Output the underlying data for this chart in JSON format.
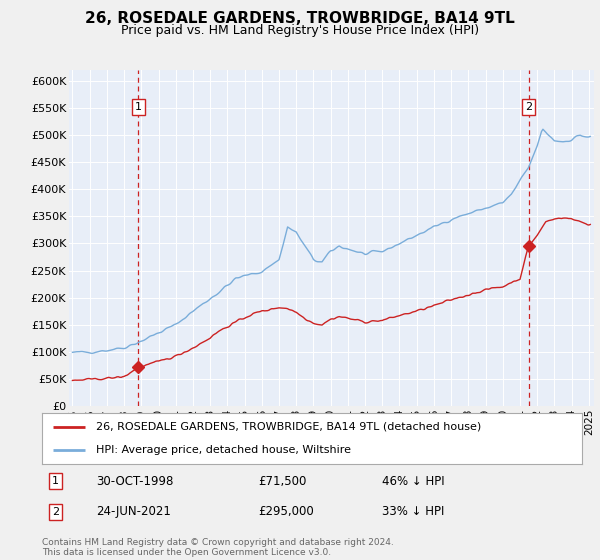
{
  "title": "26, ROSEDALE GARDENS, TROWBRIDGE, BA14 9TL",
  "subtitle": "Price paid vs. HM Land Registry's House Price Index (HPI)",
  "background_color": "#f0f0f0",
  "plot_bg_color": "#e8eef8",
  "legend_line1": "26, ROSEDALE GARDENS, TROWBRIDGE, BA14 9TL (detached house)",
  "legend_line2": "HPI: Average price, detached house, Wiltshire",
  "sale1_date": "30-OCT-1998",
  "sale1_price": "£71,500",
  "sale1_pct": "46% ↓ HPI",
  "sale2_date": "24-JUN-2021",
  "sale2_price": "£295,000",
  "sale2_pct": "33% ↓ HPI",
  "footer": "Contains HM Land Registry data © Crown copyright and database right 2024.\nThis data is licensed under the Open Government Licence v3.0.",
  "sale1_x": 1998.83,
  "sale1_y": 71500,
  "sale2_x": 2021.5,
  "sale2_y": 295000,
  "vline1_x": 1998.83,
  "vline2_x": 2021.5,
  "xlim": [
    1994.8,
    2025.3
  ],
  "ylim": [
    0,
    620000
  ],
  "yticks": [
    0,
    50000,
    100000,
    150000,
    200000,
    250000,
    300000,
    350000,
    400000,
    450000,
    500000,
    550000,
    600000
  ],
  "ytick_labels": [
    "£0",
    "£50K",
    "£100K",
    "£150K",
    "£200K",
    "£250K",
    "£300K",
    "£350K",
    "£400K",
    "£450K",
    "£500K",
    "£550K",
    "£600K"
  ],
  "xticks": [
    1995,
    1996,
    1997,
    1998,
    1999,
    2000,
    2001,
    2002,
    2003,
    2004,
    2005,
    2006,
    2007,
    2008,
    2009,
    2010,
    2011,
    2012,
    2013,
    2014,
    2015,
    2016,
    2017,
    2018,
    2019,
    2020,
    2021,
    2022,
    2023,
    2024,
    2025
  ],
  "hpi_color": "#7aadda",
  "price_color": "#cc2222",
  "vline_color": "#cc2222",
  "dot_color": "#cc2222",
  "label_box_edge": "#cc2222"
}
